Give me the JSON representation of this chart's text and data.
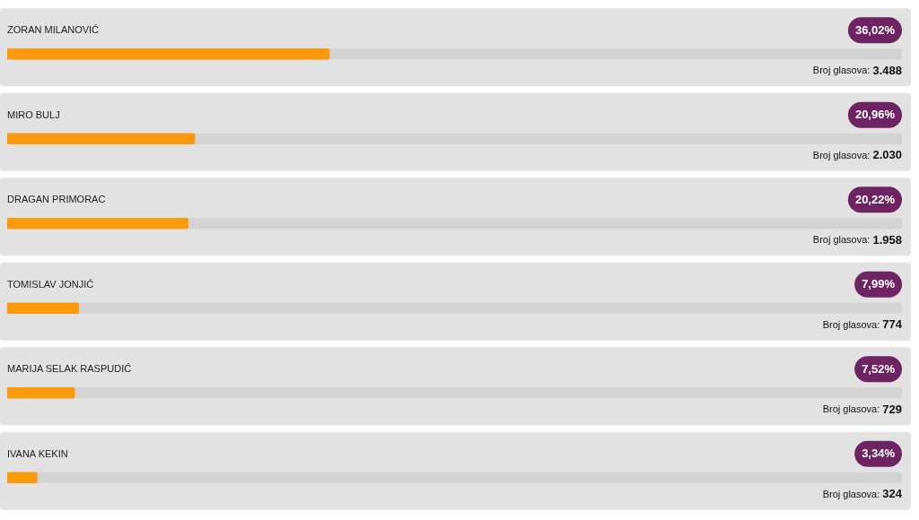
{
  "chart_data": {
    "type": "bar",
    "orientation": "horizontal",
    "categories": [
      "ZORAN MILANOVIĆ",
      "MIRO BULJ",
      "DRAGAN PRIMORAC",
      "TOMISLAV JONJIĆ",
      "MARIJA SELAK RASPUDIĆ",
      "IVANA KEKIN"
    ],
    "values": [
      36.02,
      20.96,
      20.22,
      7.99,
      7.52,
      3.34
    ],
    "value_labels": [
      "36,02%",
      "20,96%",
      "20,22%",
      "7,99%",
      "7,52%",
      "3,34%"
    ],
    "color": "#fb9a0c",
    "xlim": [
      0,
      100
    ],
    "tick_labels": false,
    "annotations": [
      "Broj glasova: 3.488",
      "Broj glasova: 2.030",
      "Broj glasova: 1.958",
      "Broj glasova: 774",
      "Broj glasova: 729",
      "Broj glasova: 324"
    ]
  }
}
